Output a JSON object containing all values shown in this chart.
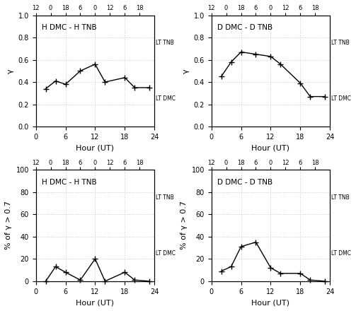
{
  "top_left": {
    "title": "H DMC - H TNB",
    "x": [
      2,
      4,
      6,
      9,
      12,
      14,
      18,
      20,
      23
    ],
    "y": [
      0.34,
      0.41,
      0.38,
      0.5,
      0.56,
      0.4,
      0.44,
      0.35,
      0.35
    ],
    "ylabel": "γ",
    "xlabel": "Hour (UT)",
    "ylim": [
      0,
      1.0
    ],
    "xlim": [
      0,
      24
    ],
    "xticks": [
      0,
      6,
      12,
      18,
      24
    ],
    "yticks": [
      0,
      0.2,
      0.4,
      0.6,
      0.8,
      1.0
    ]
  },
  "top_right": {
    "title": "D DMC - D TNB",
    "x": [
      2,
      4,
      6,
      9,
      12,
      14,
      18,
      20,
      23
    ],
    "y": [
      0.45,
      0.58,
      0.67,
      0.65,
      0.63,
      0.56,
      0.39,
      0.27,
      0.27
    ],
    "ylabel": "γ",
    "xlabel": "Hour (UT)",
    "ylim": [
      0,
      1.0
    ],
    "xlim": [
      0,
      24
    ],
    "xticks": [
      0,
      6,
      12,
      18,
      24
    ],
    "yticks": [
      0,
      0.2,
      0.4,
      0.6,
      0.8,
      1.0
    ]
  },
  "bottom_left": {
    "title": "H DMC - H TNB",
    "x": [
      2,
      4,
      6,
      9,
      12,
      14,
      18,
      20,
      23
    ],
    "y": [
      0,
      13,
      8,
      1,
      20,
      0,
      8,
      1,
      0
    ],
    "ylabel": "% of γ > 0.7",
    "xlabel": "Hour (UT)",
    "ylim": [
      0,
      100
    ],
    "xlim": [
      0,
      24
    ],
    "xticks": [
      0,
      6,
      12,
      18,
      24
    ],
    "yticks": [
      0,
      20,
      40,
      60,
      80,
      100
    ]
  },
  "bottom_right": {
    "title": "D DMC - D TNB",
    "x": [
      2,
      4,
      6,
      9,
      12,
      14,
      18,
      20,
      23
    ],
    "y": [
      9,
      13,
      31,
      35,
      12,
      7,
      7,
      1,
      0
    ],
    "ylabel": "% of γ > 0.7",
    "xlabel": "Hour (UT)",
    "ylim": [
      0,
      100
    ],
    "xlim": [
      0,
      24
    ],
    "xticks": [
      0,
      6,
      12,
      18,
      24
    ],
    "yticks": [
      0,
      20,
      40,
      60,
      80,
      100
    ]
  },
  "top_axis_tnb": [
    12,
    12,
    18,
    18,
    0,
    0,
    6,
    6
  ],
  "top_axis_dmc_labels": [
    "12",
    "12",
    "18",
    "18",
    "0",
    "0",
    "6",
    "6"
  ],
  "top_axis_tnb_labels": [
    "12",
    "12",
    "18",
    "18",
    "0",
    "0",
    "6",
    "6"
  ],
  "line_color": "#000000",
  "marker": "+",
  "markersize": 6,
  "linewidth": 1.0,
  "grid_color": "#cccccc",
  "grid_style": "dotted"
}
